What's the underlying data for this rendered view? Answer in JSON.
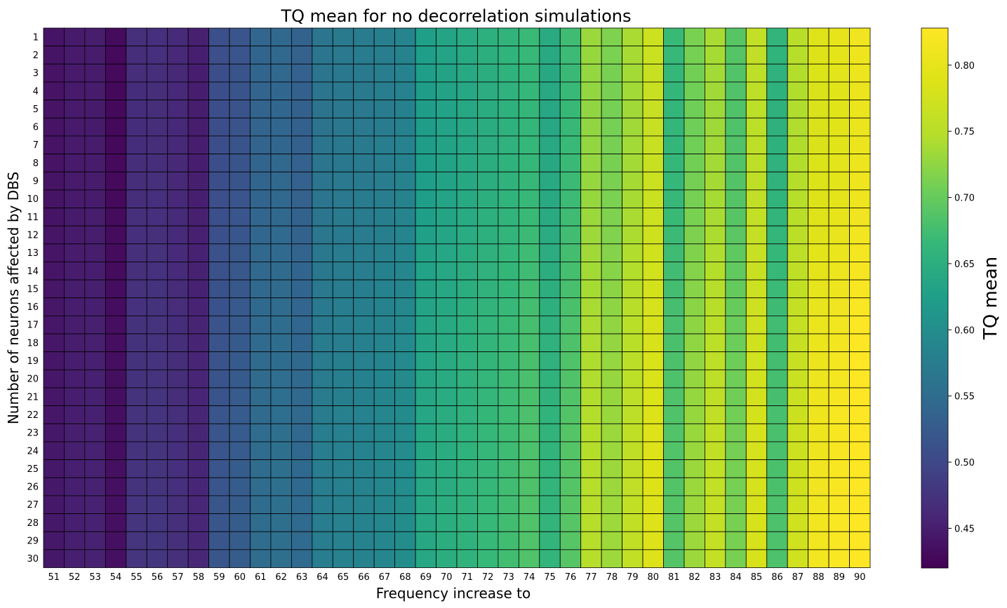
{
  "chart_data": {
    "type": "heatmap",
    "title": "TQ mean for no decorrelation simulations",
    "xlabel": "Frequency increase to",
    "ylabel": "Number of neurons affected by DBS",
    "colorbar_label": "TQ mean",
    "colormap": "viridis",
    "vmin": 0.42,
    "vmax": 0.828,
    "colorbar_ticks": [
      "0.45",
      "0.50",
      "0.55",
      "0.60",
      "0.65",
      "0.70",
      "0.75",
      "0.80"
    ],
    "x_categories": [
      "51",
      "52",
      "53",
      "54",
      "55",
      "56",
      "57",
      "58",
      "59",
      "60",
      "61",
      "62",
      "63",
      "64",
      "65",
      "66",
      "67",
      "68",
      "69",
      "70",
      "71",
      "72",
      "73",
      "74",
      "75",
      "76",
      "77",
      "78",
      "79",
      "80",
      "81",
      "82",
      "83",
      "84",
      "85",
      "86",
      "87",
      "88",
      "89",
      "90"
    ],
    "y_categories": [
      "1",
      "2",
      "3",
      "4",
      "5",
      "6",
      "7",
      "8",
      "9",
      "10",
      "11",
      "12",
      "13",
      "14",
      "15",
      "16",
      "17",
      "18",
      "19",
      "20",
      "21",
      "22",
      "23",
      "24",
      "25",
      "26",
      "27",
      "28",
      "29",
      "30"
    ],
    "column_profile": [
      0.44,
      0.447,
      0.449,
      0.43,
      0.469,
      0.47,
      0.463,
      0.452,
      0.51,
      0.518,
      0.54,
      0.544,
      0.535,
      0.565,
      0.57,
      0.573,
      0.578,
      0.586,
      0.626,
      0.634,
      0.643,
      0.651,
      0.659,
      0.668,
      0.644,
      0.672,
      0.731,
      0.715,
      0.74,
      0.77,
      0.668,
      0.712,
      0.74,
      0.69,
      0.76,
      0.66,
      0.75,
      0.79,
      0.8,
      0.812
    ],
    "row_deltas": [
      0.0,
      -0.002,
      -0.004,
      -0.005,
      -0.006,
      -0.006,
      -0.005,
      -0.004,
      -0.003,
      -0.002,
      0.0,
      0.002,
      0.004,
      0.006,
      0.008,
      0.01,
      0.012,
      0.013,
      0.014,
      0.015,
      0.016,
      0.017,
      0.018,
      0.018,
      0.019,
      0.019,
      0.02,
      0.02,
      0.02,
      0.02
    ],
    "value_rule": "value[row][col] = column_profile[col] + row_deltas[row] * (0.2 + col/39)"
  }
}
